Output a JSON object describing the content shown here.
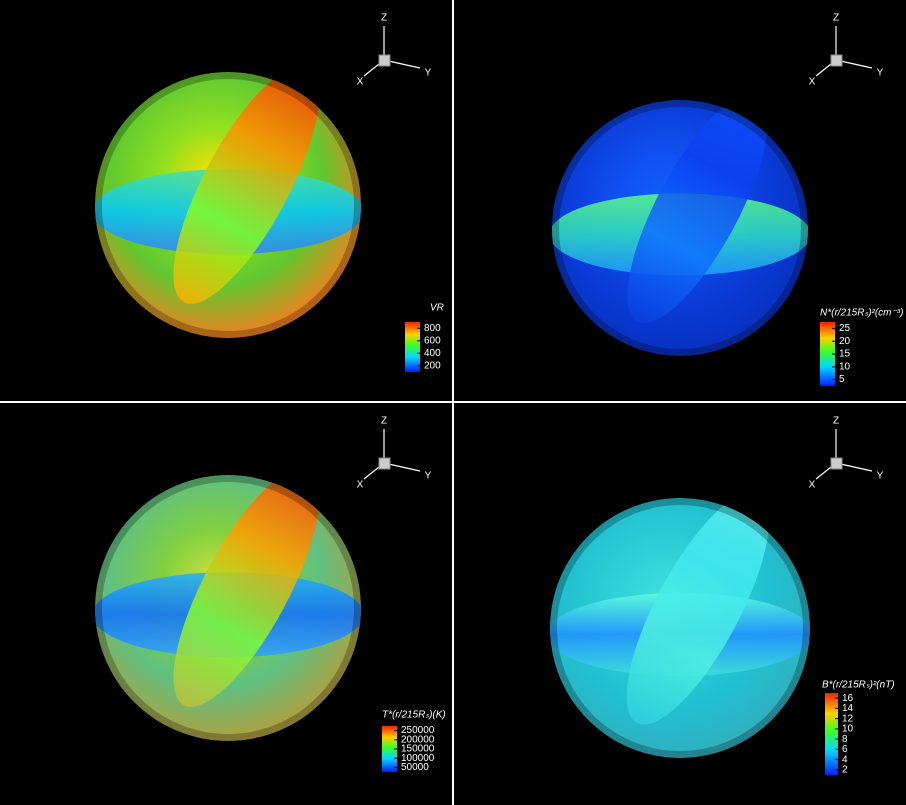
{
  "panels": [
    {
      "axes": {
        "z": "Z",
        "x": "X",
        "y": "Y"
      },
      "legend": {
        "title": "VR",
        "ticks": [
          800,
          600,
          400,
          200
        ]
      }
    },
    {
      "axes": {
        "z": "Z",
        "x": "X",
        "y": "Y"
      },
      "legend": {
        "title": "N*(r/215Rₛ)²(cm⁻³)",
        "ticks": [
          25,
          20,
          15,
          10,
          5
        ]
      }
    },
    {
      "axes": {
        "z": "Z",
        "x": "X",
        "y": "Y"
      },
      "legend": {
        "title": "T*(r/215Rₛ)(K)",
        "ticks": [
          250000,
          200000,
          150000,
          100000,
          50000
        ]
      }
    },
    {
      "axes": {
        "z": "Z",
        "x": "X",
        "y": "Y"
      },
      "legend": {
        "title": "B*(r/215Rₛ)²(nT)",
        "ticks": [
          16,
          14,
          12,
          10,
          8,
          6,
          4,
          2
        ]
      }
    }
  ]
}
